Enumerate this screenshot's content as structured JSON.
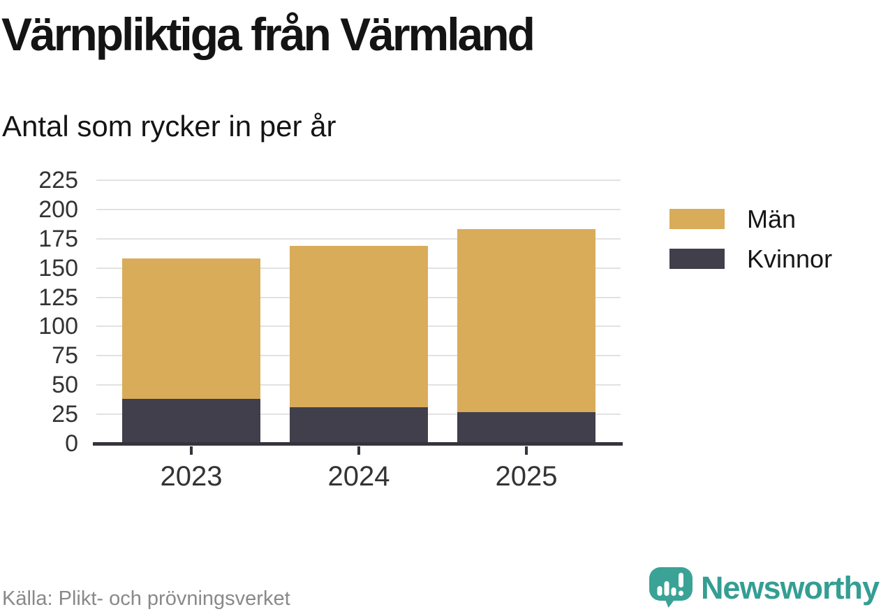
{
  "header": {
    "title": "Värnpliktiga från Värmland",
    "subtitle": "Antal som rycker in per år"
  },
  "chart_data": {
    "type": "bar",
    "stacked": true,
    "title": "Värnpliktiga från Värmland",
    "subtitle": "Antal som rycker in per år",
    "categories": [
      "2023",
      "2024",
      "2025"
    ],
    "series": [
      {
        "name": "Män",
        "color": "#d9ac5a",
        "values": [
          120,
          138,
          156
        ]
      },
      {
        "name": "Kvinnor",
        "color": "#413f4c",
        "values": [
          38,
          31,
          27
        ]
      }
    ],
    "stack_order_bottom_to_top": [
      "Kvinnor",
      "Män"
    ],
    "stacked_totals": [
      158,
      169,
      183
    ],
    "xlabel": "",
    "ylabel": "",
    "ylim": [
      0,
      225
    ],
    "yticks": [
      0,
      25,
      50,
      75,
      100,
      125,
      150,
      175,
      200,
      225
    ],
    "grid": true,
    "legend_position": "right"
  },
  "footer": {
    "source": "Källa: Plikt- och prövningsverket",
    "brand": "Newsworthy"
  },
  "colors": {
    "men_bar": "#d9ac5a",
    "women_bar": "#413f4c",
    "axis": "#35343e",
    "gridline": "#e2e2e2",
    "tick_label": "#333333",
    "heading_text": "#141414",
    "source_text": "#898989",
    "brand_teal": "#349e93"
  }
}
